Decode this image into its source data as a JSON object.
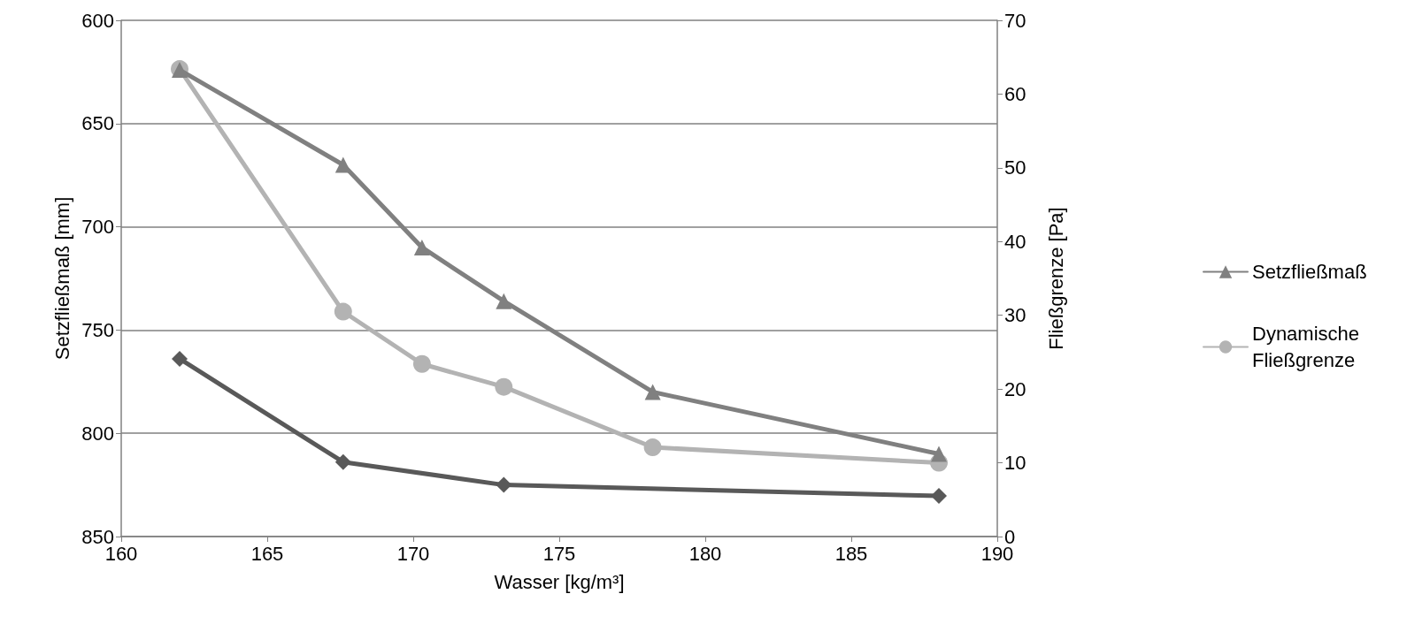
{
  "chart_data": {
    "type": "line",
    "xlabel": "Wasser [kg/m³]",
    "ylabel": "Setzfließmaß [mm]",
    "y2label": "Fließgrenze [Pa]",
    "xlim": [
      160,
      190
    ],
    "xticks": [
      160,
      165,
      170,
      175,
      180,
      185,
      190
    ],
    "ylim": [
      850,
      600
    ],
    "yticks": [
      600,
      650,
      700,
      750,
      800,
      850
    ],
    "y2lim": [
      0,
      70
    ],
    "y2ticks": [
      0,
      10,
      20,
      30,
      40,
      50,
      60,
      70
    ],
    "grid": "y",
    "legend": "right",
    "line_style": "solid",
    "series": [
      {
        "name": "Setzfließmaß",
        "color": "#808080",
        "marker": "triangle",
        "x": [
          162,
          167.6,
          170.3,
          173.1,
          178.2,
          188
        ],
        "values": [
          624,
          670,
          710,
          736,
          780,
          810
        ]
      },
      {
        "name": "Dynamische Fließgrenze",
        "color": "#b3b3b3",
        "marker": "circle",
        "axis": "y2",
        "x": [
          162,
          167.6,
          170.3,
          173.1,
          178.2,
          188
        ],
        "values": [
          63.4,
          30.5,
          23.4,
          20.3,
          12.1,
          10.0
        ]
      },
      {
        "color": "#595959",
        "marker": "diamond",
        "axis": "y2",
        "x": [
          162,
          167.6,
          173.1,
          188
        ],
        "values": [
          24.1,
          10.1,
          7.0,
          5.5
        ]
      }
    ]
  }
}
